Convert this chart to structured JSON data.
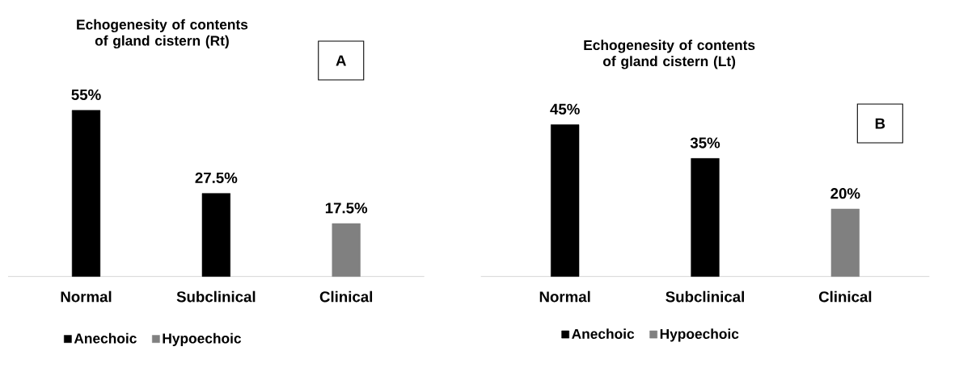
{
  "chart_data": [
    {
      "type": "bar",
      "title": "Echogenesity of contents of gland cistern (Rt)",
      "categories": [
        "Normal",
        "Subclinical",
        "Clinical"
      ],
      "series": [
        {
          "name": "Anechoic",
          "color": "#000000",
          "values": [
            55,
            27.5,
            null
          ],
          "value_labels": [
            "55%",
            "27.5%",
            null
          ]
        },
        {
          "name": "Hypoechoic",
          "color": "#808080",
          "values": [
            null,
            null,
            17.5
          ],
          "value_labels": [
            null,
            null,
            "17.5%"
          ]
        }
      ],
      "legend": "bottom",
      "annotations": [
        "A"
      ]
    },
    {
      "type": "bar",
      "title": "Echogenesity of contents of gland cistern (Lt)",
      "categories": [
        "Normal",
        "Subclinical",
        "Clinical"
      ],
      "series": [
        {
          "name": "Anechoic",
          "color": "#000000",
          "values": [
            45,
            35,
            null
          ],
          "value_labels": [
            "45%",
            "35%",
            null
          ]
        },
        {
          "name": "Hypoechoic",
          "color": "#808080",
          "values": [
            null,
            null,
            20
          ],
          "value_labels": [
            null,
            null,
            "20%"
          ]
        }
      ],
      "legend": "bottom",
      "annotations": [
        "B"
      ]
    }
  ]
}
